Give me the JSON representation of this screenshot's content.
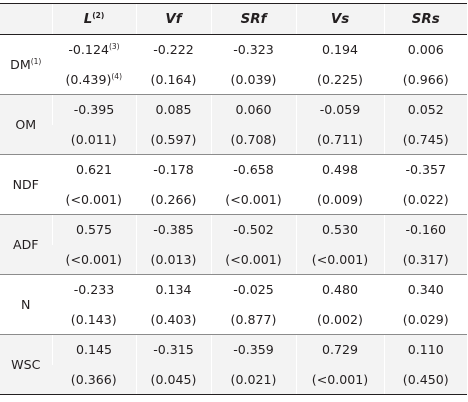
{
  "table": {
    "corner": "",
    "headers": [
      {
        "label": "L",
        "sup": "(2)"
      },
      {
        "label": "Vf",
        "sup": ""
      },
      {
        "label": "SRf",
        "sup": ""
      },
      {
        "label": "Vs",
        "sup": ""
      },
      {
        "label": "SRs",
        "sup": ""
      }
    ],
    "rows": [
      {
        "label": "DM",
        "label_sup": "(1)",
        "r": [
          {
            "v": "-0.124",
            "sup": "(3)"
          },
          {
            "v": "-0.222",
            "sup": ""
          },
          {
            "v": "-0.323",
            "sup": ""
          },
          {
            "v": "0.194",
            "sup": ""
          },
          {
            "v": "0.006",
            "sup": ""
          }
        ],
        "p": [
          {
            "v": "(0.439)",
            "sup": "(4)"
          },
          {
            "v": "(0.164)",
            "sup": ""
          },
          {
            "v": "(0.039)",
            "sup": ""
          },
          {
            "v": "(0.225)",
            "sup": ""
          },
          {
            "v": "(0.966)",
            "sup": ""
          }
        ]
      },
      {
        "label": "OM",
        "label_sup": "",
        "r": [
          {
            "v": "-0.395",
            "sup": ""
          },
          {
            "v": "0.085",
            "sup": ""
          },
          {
            "v": "0.060",
            "sup": ""
          },
          {
            "v": "-0.059",
            "sup": ""
          },
          {
            "v": "0.052",
            "sup": ""
          }
        ],
        "p": [
          {
            "v": "(0.011)",
            "sup": ""
          },
          {
            "v": "(0.597)",
            "sup": ""
          },
          {
            "v": "(0.708)",
            "sup": ""
          },
          {
            "v": "(0.711)",
            "sup": ""
          },
          {
            "v": "(0.745)",
            "sup": ""
          }
        ]
      },
      {
        "label": "NDF",
        "label_sup": "",
        "r": [
          {
            "v": "0.621",
            "sup": ""
          },
          {
            "v": "-0.178",
            "sup": ""
          },
          {
            "v": "-0.658",
            "sup": ""
          },
          {
            "v": "0.498",
            "sup": ""
          },
          {
            "v": "-0.357",
            "sup": ""
          }
        ],
        "p": [
          {
            "v": "(<0.001)",
            "sup": ""
          },
          {
            "v": "(0.266)",
            "sup": ""
          },
          {
            "v": "(<0.001)",
            "sup": ""
          },
          {
            "v": "(0.009)",
            "sup": ""
          },
          {
            "v": "(0.022)",
            "sup": ""
          }
        ]
      },
      {
        "label": "ADF",
        "label_sup": "",
        "r": [
          {
            "v": "0.575",
            "sup": ""
          },
          {
            "v": "-0.385",
            "sup": ""
          },
          {
            "v": "-0.502",
            "sup": ""
          },
          {
            "v": "0.530",
            "sup": ""
          },
          {
            "v": "-0.160",
            "sup": ""
          }
        ],
        "p": [
          {
            "v": "(<0.001)",
            "sup": ""
          },
          {
            "v": "(0.013)",
            "sup": ""
          },
          {
            "v": "(<0.001)",
            "sup": ""
          },
          {
            "v": "(<0.001)",
            "sup": ""
          },
          {
            "v": "(0.317)",
            "sup": ""
          }
        ]
      },
      {
        "label": "N",
        "label_sup": "",
        "r": [
          {
            "v": "-0.233",
            "sup": ""
          },
          {
            "v": "0.134",
            "sup": ""
          },
          {
            "v": "-0.025",
            "sup": ""
          },
          {
            "v": "0.480",
            "sup": ""
          },
          {
            "v": "0.340",
            "sup": ""
          }
        ],
        "p": [
          {
            "v": "(0.143)",
            "sup": ""
          },
          {
            "v": "(0.403)",
            "sup": ""
          },
          {
            "v": "(0.877)",
            "sup": ""
          },
          {
            "v": "(0.002)",
            "sup": ""
          },
          {
            "v": "(0.029)",
            "sup": ""
          }
        ]
      },
      {
        "label": "WSC",
        "label_sup": "",
        "r": [
          {
            "v": "0.145",
            "sup": ""
          },
          {
            "v": "-0.315",
            "sup": ""
          },
          {
            "v": "-0.359",
            "sup": ""
          },
          {
            "v": "0.729",
            "sup": ""
          },
          {
            "v": "0.110",
            "sup": ""
          }
        ],
        "p": [
          {
            "v": "(0.366)",
            "sup": ""
          },
          {
            "v": "(0.045)",
            "sup": ""
          },
          {
            "v": "(0.021)",
            "sup": ""
          },
          {
            "v": "(<0.001)",
            "sup": ""
          },
          {
            "v": "(0.450)",
            "sup": ""
          }
        ]
      }
    ],
    "colors": {
      "band": "#f3f3f3",
      "text": "#231f20",
      "rule": "#231f20",
      "divider": "#8c8c8c"
    }
  }
}
